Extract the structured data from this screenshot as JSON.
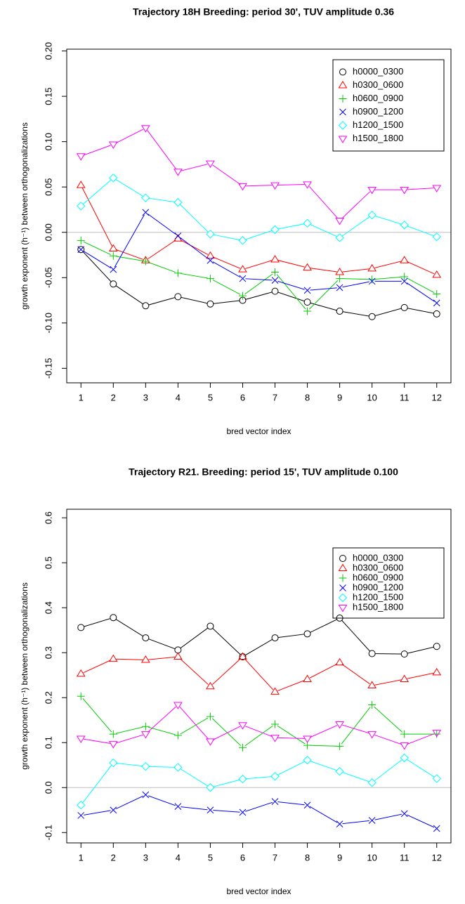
{
  "chart_data": [
    {
      "type": "line",
      "title": "Trajectory 18H Breeding: period 30', TUV amplitude 0.36",
      "x_label": "bred vector index",
      "y_label": "growth exponent  (h⁻¹)  between orthogonalizations",
      "x": [
        1,
        2,
        3,
        4,
        5,
        6,
        7,
        8,
        9,
        10,
        11,
        12
      ],
      "xlim": [
        0.56,
        12.44
      ],
      "xticks": [
        1,
        2,
        3,
        4,
        5,
        6,
        7,
        8,
        9,
        10,
        11,
        12
      ],
      "ylim": [
        -0.166,
        0.202
      ],
      "yticks": [
        {
          "value": -0.15,
          "label": "-0.15"
        },
        {
          "value": -0.1,
          "label": "-0.10"
        },
        -0.05,
        {
          "value": 0,
          "label": "0.00"
        },
        0.05,
        {
          "value": 0.1,
          "label": "0.10"
        },
        0.15,
        {
          "value": 0.2,
          "label": "0.20"
        }
      ],
      "reference_line": 0,
      "legend": "top-right",
      "series": [
        {
          "name": "h0000_0300",
          "color": "#000000",
          "marker": "circle",
          "values": [
            -0.019,
            -0.057,
            -0.081,
            -0.071,
            -0.079,
            -0.075,
            -0.065,
            -0.077,
            -0.087,
            -0.093,
            -0.083,
            -0.09
          ]
        },
        {
          "name": "h0300_0600",
          "color": "#ff0000",
          "marker": "triangle-up",
          "values": [
            0.052,
            -0.018,
            -0.031,
            -0.007,
            -0.026,
            -0.041,
            -0.03,
            -0.039,
            -0.044,
            -0.04,
            -0.031,
            -0.047
          ]
        },
        {
          "name": "h0600_0900",
          "color": "#00cd00",
          "marker": "plus",
          "values": [
            -0.009,
            -0.026,
            -0.032,
            -0.045,
            -0.051,
            -0.07,
            -0.044,
            -0.087,
            -0.051,
            -0.052,
            -0.049,
            -0.068
          ]
        },
        {
          "name": "h0900_1200",
          "color": "#0000ff",
          "marker": "cross",
          "values": [
            -0.019,
            -0.041,
            0.022,
            -0.004,
            -0.031,
            -0.051,
            -0.053,
            -0.064,
            -0.061,
            -0.054,
            -0.054,
            -0.078
          ]
        },
        {
          "name": "h1200_1500",
          "color": "#00ffff",
          "marker": "diamond",
          "values": [
            0.029,
            0.06,
            0.038,
            0.033,
            -0.002,
            -0.009,
            0.003,
            0.01,
            -0.006,
            0.019,
            0.008,
            -0.005
          ]
        },
        {
          "name": "h1500_1800",
          "color": "#ff00ff",
          "marker": "triangle-down",
          "values": [
            0.084,
            0.097,
            0.115,
            0.067,
            0.076,
            0.051,
            0.052,
            0.053,
            0.013,
            0.047,
            0.047,
            0.049
          ]
        }
      ]
    },
    {
      "type": "line",
      "title": "Trajectory R21. Breeding: period 15', TUV amplitude 0.100",
      "x_label": "bred vector index",
      "y_label": "growth exponent  (h⁻¹)  between orthogonalizations",
      "x": [
        1,
        2,
        3,
        4,
        5,
        6,
        7,
        8,
        9,
        10,
        11,
        12
      ],
      "xlim": [
        0.56,
        12.44
      ],
      "xticks": [
        1,
        2,
        3,
        4,
        5,
        6,
        7,
        8,
        9,
        10,
        11,
        12
      ],
      "ylim": [
        -0.123,
        0.619
      ],
      "yticks": [
        -0.1,
        {
          "value": 0,
          "label": "0.0"
        },
        0.1,
        0.2,
        0.3,
        0.4,
        0.5,
        0.6
      ],
      "reference_line": 0,
      "legend": "top-right",
      "series": [
        {
          "name": "h0000_0300",
          "color": "#000000",
          "marker": "circle",
          "values": [
            0.356,
            0.378,
            0.333,
            0.306,
            0.359,
            0.291,
            0.333,
            0.342,
            0.377,
            0.298,
            0.297,
            0.314
          ]
        },
        {
          "name": "h0300_0600",
          "color": "#ff0000",
          "marker": "triangle-up",
          "values": [
            0.253,
            0.286,
            0.284,
            0.291,
            0.225,
            0.291,
            0.213,
            0.241,
            0.278,
            0.227,
            0.241,
            0.256
          ]
        },
        {
          "name": "h0600_0900",
          "color": "#00cd00",
          "marker": "plus",
          "values": [
            0.203,
            0.119,
            0.136,
            0.116,
            0.158,
            0.089,
            0.141,
            0.094,
            0.092,
            0.184,
            0.119,
            0.119
          ]
        },
        {
          "name": "h0900_1200",
          "color": "#0000ff",
          "marker": "cross",
          "values": [
            -0.062,
            -0.05,
            -0.016,
            -0.042,
            -0.05,
            -0.055,
            -0.031,
            -0.039,
            -0.081,
            -0.073,
            -0.058,
            -0.091
          ]
        },
        {
          "name": "h1200_1500",
          "color": "#00ffff",
          "marker": "diamond",
          "values": [
            -0.039,
            0.055,
            0.047,
            0.045,
            0,
            0.019,
            0.025,
            0.061,
            0.036,
            0.011,
            0.066,
            0.02
          ]
        },
        {
          "name": "h1500_1800",
          "color": "#ff00ff",
          "marker": "triangle-down",
          "values": [
            0.109,
            0.097,
            0.119,
            0.184,
            0.103,
            0.139,
            0.111,
            0.109,
            0.141,
            0.119,
            0.094,
            0.122
          ]
        }
      ]
    }
  ]
}
